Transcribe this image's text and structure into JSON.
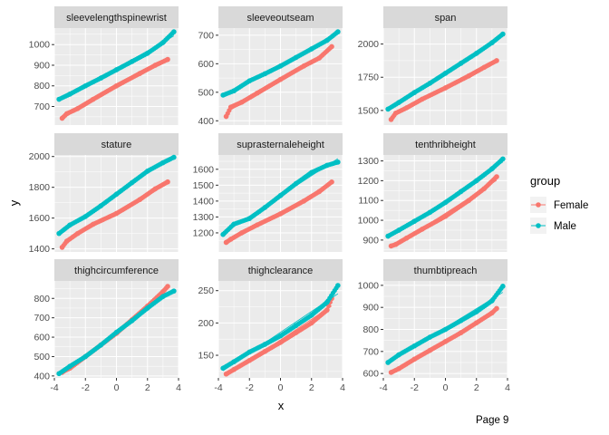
{
  "page_label": "Page 9",
  "chart_data": {
    "type": "scatter",
    "subtype": "faceted normal Q-Q plot with fitted reference lines",
    "xlabel": "x",
    "ylabel": "y",
    "xlim": [
      -4,
      4
    ],
    "x_ticks": [
      -4,
      -2,
      0,
      2,
      4
    ],
    "grid": true,
    "legend": {
      "title": "group",
      "placement": "right",
      "entries": [
        {
          "name": "Female",
          "color": "#F8766D"
        },
        {
          "name": "Male",
          "color": "#00BFC4"
        }
      ]
    },
    "colors": {
      "panel_bg": "#EBEBEB",
      "strip_bg": "#D9D9D9",
      "grid": "#FFFFFF"
    },
    "facets": [
      {
        "name": "sleevelengthspinewrist",
        "ylim": [
          610,
          1080
        ],
        "y_ticks": [
          700,
          800,
          900,
          1000
        ],
        "series": [
          {
            "name": "Female",
            "x": [
              -3.5,
              -3.2,
              -2.5,
              -1.5,
              0,
              1.5,
              2.5,
              3.3
            ],
            "y": [
              643,
              665,
              690,
              735,
              800,
              860,
              900,
              928
            ]
          },
          {
            "name": "Male",
            "x": [
              -3.7,
              -3,
              -2,
              -1,
              0,
              1,
              2,
              3,
              3.7
            ],
            "y": [
              735,
              760,
              800,
              838,
              878,
              918,
              958,
              1010,
              1062
            ]
          }
        ]
      },
      {
        "name": "sleeveoutseam",
        "ylim": [
          385,
          725
        ],
        "y_ticks": [
          400,
          500,
          600,
          700
        ],
        "series": [
          {
            "name": "Female",
            "x": [
              -3.5,
              -3.2,
              -2.5,
              -1.5,
              0,
              1.5,
              2.5,
              3.3
            ],
            "y": [
              415,
              448,
              465,
              497,
              545,
              592,
              620,
              660
            ]
          },
          {
            "name": "Male",
            "x": [
              -3.7,
              -3,
              -2,
              -1,
              0,
              1,
              2,
              3,
              3.7
            ],
            "y": [
              490,
              505,
              540,
              565,
              592,
              622,
              652,
              682,
              712
            ]
          }
        ]
      },
      {
        "name": "span",
        "ylim": [
          1390,
          2120
        ],
        "y_ticks": [
          1500,
          1750,
          2000
        ],
        "series": [
          {
            "name": "Female",
            "x": [
              -3.5,
              -3.2,
              -2.5,
              -1.5,
              0,
              1.5,
              2.5,
              3.3
            ],
            "y": [
              1432,
              1480,
              1520,
              1585,
              1670,
              1760,
              1825,
              1875
            ]
          },
          {
            "name": "Male",
            "x": [
              -3.7,
              -3,
              -2,
              -1,
              0,
              1,
              2,
              3,
              3.7
            ],
            "y": [
              1510,
              1560,
              1635,
              1705,
              1780,
              1855,
              1930,
              2010,
              2075
            ]
          }
        ]
      },
      {
        "name": "stature",
        "ylim": [
          1380,
          2010
        ],
        "y_ticks": [
          1400,
          1600,
          1800,
          2000
        ],
        "series": [
          {
            "name": "Female",
            "x": [
              -3.5,
              -3.2,
              -2.5,
              -1.5,
              0,
              1.5,
              2.5,
              3.3
            ],
            "y": [
              1410,
              1450,
              1500,
              1560,
              1630,
              1720,
              1790,
              1835
            ]
          },
          {
            "name": "Male",
            "x": [
              -3.7,
              -3,
              -2,
              -1,
              0,
              1,
              2,
              3,
              3.7
            ],
            "y": [
              1500,
              1555,
              1610,
              1680,
              1755,
              1830,
              1905,
              1960,
              1995
            ]
          }
        ]
      },
      {
        "name": "suprasternaleheight",
        "ylim": [
          1080,
          1690
        ],
        "y_ticks": [
          1200,
          1300,
          1400,
          1500,
          1600
        ],
        "series": [
          {
            "name": "Female",
            "x": [
              -3.5,
              -3.2,
              -2.5,
              -1.5,
              0,
              1.5,
              2.5,
              3.3
            ],
            "y": [
              1140,
              1160,
              1200,
              1250,
              1320,
              1400,
              1460,
              1520
            ]
          },
          {
            "name": "Male",
            "x": [
              -3.7,
              -3,
              -2,
              -1,
              0,
              1,
              2,
              3,
              3.7
            ],
            "y": [
              1190,
              1255,
              1290,
              1360,
              1435,
              1510,
              1580,
              1625,
              1645
            ]
          }
        ]
      },
      {
        "name": "tenthribheight",
        "ylim": [
          840,
          1330
        ],
        "y_ticks": [
          900,
          1000,
          1100,
          1200,
          1300
        ],
        "series": [
          {
            "name": "Female",
            "x": [
              -3.5,
              -3.2,
              -2.5,
              -1.5,
              0,
              1.5,
              2.5,
              3.3
            ],
            "y": [
              870,
              878,
              910,
              955,
              1020,
              1100,
              1160,
              1220
            ]
          },
          {
            "name": "Male",
            "x": [
              -3.7,
              -3,
              -2,
              -1,
              0,
              1,
              2,
              3,
              3.7
            ],
            "y": [
              920,
              950,
              995,
              1040,
              1090,
              1145,
              1200,
              1260,
              1310
            ]
          }
        ]
      },
      {
        "name": "thighcircumference",
        "ylim": [
          390,
          890
        ],
        "y_ticks": [
          400,
          500,
          600,
          700,
          800
        ],
        "series": [
          {
            "name": "Female",
            "x": [
              -3.5,
              -3,
              -2,
              -1,
              0,
              1,
              2,
              3,
              3.3
            ],
            "y": [
              420,
              440,
              500,
              560,
              620,
              690,
              760,
              835,
              862
            ]
          },
          {
            "name": "Male",
            "x": [
              -3.7,
              -3,
              -2,
              -1,
              0,
              1,
              2,
              3,
              3.7
            ],
            "y": [
              412,
              450,
              500,
              560,
              625,
              685,
              750,
              810,
              838
            ]
          }
        ]
      },
      {
        "name": "thighclearance",
        "ylim": [
          115,
          265
        ],
        "y_ticks": [
          150,
          200,
          250
        ],
        "series": [
          {
            "name": "Female",
            "x": [
              -3.5,
              -3,
              -2,
              -1,
              0,
              1,
              2,
              3,
              3.3
            ],
            "y": [
              121,
              128,
              142,
              156,
              170,
              185,
              200,
              220,
              238
            ]
          },
          {
            "name": "Male",
            "x": [
              -3.7,
              -3,
              -2,
              -1,
              0,
              1,
              2,
              3,
              3.7
            ],
            "y": [
              130,
              140,
              155,
              167,
              180,
              196,
              212,
              232,
              258
            ]
          }
        ]
      },
      {
        "name": "thumbtipreach",
        "ylim": [
          580,
          1020
        ],
        "y_ticks": [
          600,
          700,
          800,
          900,
          1000
        ],
        "series": [
          {
            "name": "Female",
            "x": [
              -3.5,
              -3,
              -2,
              -1,
              0,
              1,
              2,
              3,
              3.3
            ],
            "y": [
              605,
              622,
              665,
              705,
              745,
              785,
              830,
              875,
              895
            ]
          },
          {
            "name": "Male",
            "x": [
              -3.7,
              -3,
              -2,
              -1,
              0,
              1,
              2,
              3,
              3.7
            ],
            "y": [
              650,
              685,
              725,
              765,
              800,
              840,
              880,
              930,
              996
            ]
          }
        ]
      }
    ]
  }
}
